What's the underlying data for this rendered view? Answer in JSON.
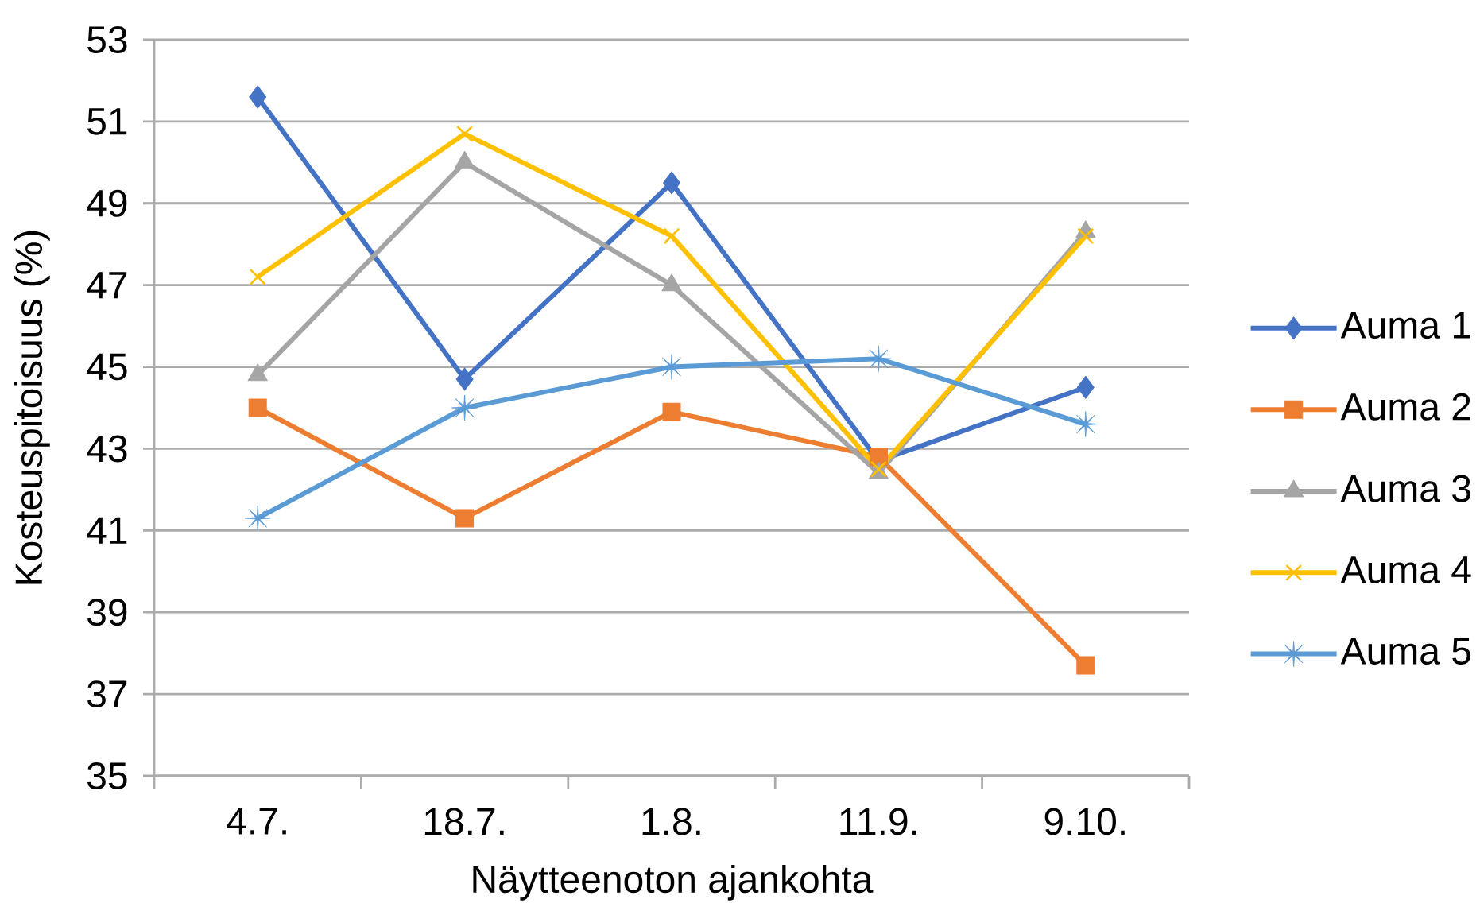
{
  "chart_data": {
    "type": "line",
    "xlabel": "Näytteenoton ajankohta",
    "ylabel": "Kosteuspitoisuus (%)",
    "categories": [
      "4.7.",
      "18.7.",
      "1.8.",
      "11.9.",
      "9.10."
    ],
    "ylim": [
      35,
      53
    ],
    "yticks": [
      35,
      37,
      39,
      41,
      43,
      45,
      47,
      49,
      51,
      53
    ],
    "grid": "y",
    "legend": "right",
    "line_style": "solid",
    "series": [
      {
        "name": "Auma 1",
        "color": "#4472c4",
        "marker": "diamond",
        "values": [
          51.6,
          44.7,
          49.5,
          42.7,
          44.5
        ]
      },
      {
        "name": "Auma 2",
        "color": "#ed7d31",
        "marker": "square",
        "values": [
          44.0,
          41.3,
          43.9,
          42.8,
          37.7
        ]
      },
      {
        "name": "Auma 3",
        "color": "#a5a5a5",
        "marker": "triangle",
        "values": [
          44.8,
          50.0,
          47.0,
          42.4,
          48.3
        ]
      },
      {
        "name": "Auma 4",
        "color": "#ffc000",
        "marker": "cross",
        "values": [
          47.2,
          50.7,
          48.2,
          42.5,
          48.2
        ]
      },
      {
        "name": "Auma 5",
        "color": "#5b9bd5",
        "marker": "star",
        "values": [
          41.3,
          44.0,
          45.0,
          45.2,
          43.6
        ]
      }
    ]
  }
}
